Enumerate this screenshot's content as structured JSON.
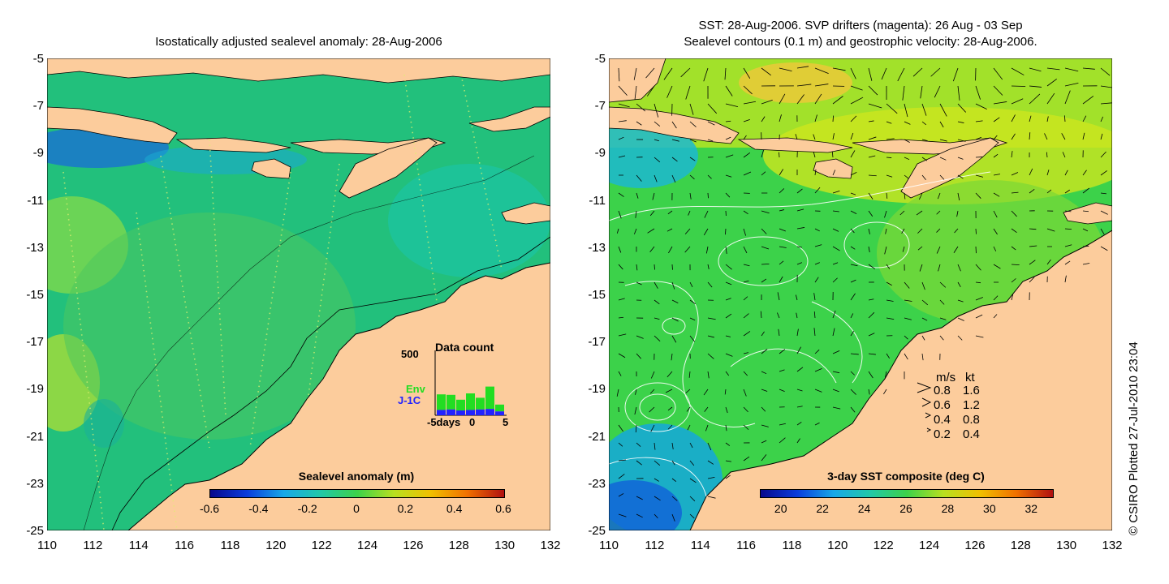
{
  "left_map": {
    "title": "Isostatically adjusted sealevel anomaly: 28-Aug-2006",
    "y_ticks": [
      "-5",
      "-7",
      "-9",
      "-11",
      "-13",
      "-15",
      "-17",
      "-19",
      "-21",
      "-23",
      "-25"
    ],
    "x_ticks": [
      "110",
      "112",
      "114",
      "116",
      "118",
      "120",
      "122",
      "124",
      "126",
      "128",
      "130",
      "132"
    ],
    "colorbar": {
      "label": "Sealevel anomaly (m)",
      "ticks": [
        "-0.6",
        "-0.4",
        "-0.2",
        "0",
        "0.2",
        "0.4",
        "0.6"
      ],
      "range": [
        -0.6,
        0.6
      ]
    },
    "inset": {
      "title": "Data count",
      "ymax_label": "500",
      "series": [
        {
          "name": "Env",
          "color": "#22dd22"
        },
        {
          "name": "J-1C",
          "color": "#2222ff"
        }
      ],
      "x_labels": [
        "-5days",
        "0",
        "5"
      ],
      "env_counts": [
        160,
        150,
        110,
        170,
        120,
        230,
        70
      ],
      "j1c_counts": [
        55,
        60,
        50,
        55,
        60,
        65,
        40
      ]
    }
  },
  "right_map": {
    "title_line1": "SST: 28-Aug-2006. SVP drifters (magenta): 26 Aug - 03 Sep",
    "title_line2": "Sealevel contours (0.1 m) and geostrophic velocity: 28-Aug-2006.",
    "y_ticks": [
      "-5",
      "-7",
      "-9",
      "-11",
      "-13",
      "-15",
      "-17",
      "-19",
      "-21",
      "-23",
      "-25"
    ],
    "x_ticks": [
      "110",
      "112",
      "114",
      "116",
      "118",
      "120",
      "122",
      "124",
      "126",
      "128",
      "130",
      "132"
    ],
    "colorbar": {
      "label": "3-day SST composite (deg C)",
      "ticks": [
        "20",
        "22",
        "24",
        "26",
        "28",
        "30",
        "32"
      ],
      "range": [
        19,
        33
      ]
    },
    "velocity_legend": {
      "header_ms": "m/s",
      "header_kt": "kt",
      "rows": [
        {
          "ms": "0.8",
          "kt": "1.6"
        },
        {
          "ms": "0.6",
          "kt": "1.2"
        },
        {
          "ms": "0.4",
          "kt": "0.8"
        },
        {
          "ms": "0.2",
          "kt": "0.4"
        }
      ]
    }
  },
  "credit": "© CSIRO Plotted 27-Jul-2010 23:04",
  "colors": {
    "land": "#fccc9c",
    "sla_ocean": "#22c07c",
    "sst_ocean": "#3cd24a",
    "sst_warm": "#c8e81c"
  }
}
